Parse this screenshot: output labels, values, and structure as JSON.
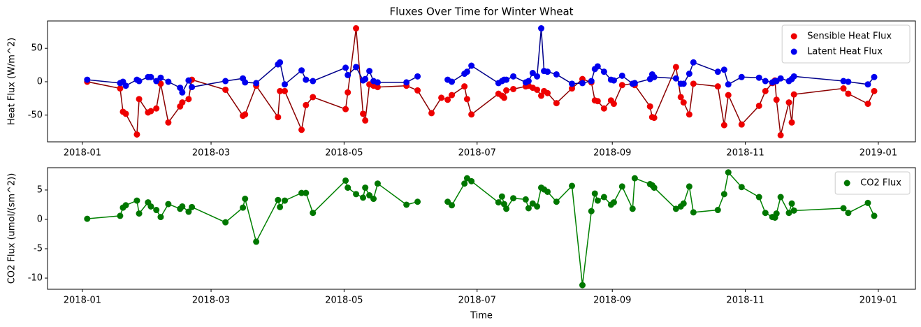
{
  "chart_data": [
    {
      "type": "line",
      "title": "Fluxes Over Time for Winter Wheat",
      "y_label": "Heat Flux (W/m^2)",
      "x": [
        2.2,
        17.3,
        18.6,
        19.9,
        25.0,
        26.0,
        30.1,
        31.4,
        33.9,
        35.9,
        39.4,
        44.8,
        45.8,
        48.7,
        50.2,
        65.6,
        73.6,
        74.6,
        79.7,
        89.7,
        90.6,
        92.8,
        100.5,
        102.5,
        105.7,
        120.7,
        121.7,
        125.5,
        128.7,
        129.7,
        131.6,
        133.5,
        135.4,
        148.6,
        153.7,
        160.1,
        164.6,
        167.5,
        169.4,
        175.2,
        176.4,
        178.4,
        190.8,
        192.4,
        193.4,
        194.4,
        197.6,
        203.3,
        204.6,
        206.5,
        208.5,
        210.4,
        211.7,
        213.3,
        217.4,
        224.5,
        229.3,
        233.4,
        235.0,
        236.3,
        239.2,
        242.4,
        243.7,
        247.5,
        252.3,
        253.3,
        260.3,
        261.3,
        262.2,
        272.2,
        274.4,
        275.7,
        278.3,
        280.2,
        291.4,
        294.3,
        296.2,
        302.3,
        310.3,
        313.2,
        316.4,
        317.6,
        318.3,
        320.2,
        324.0,
        325.3,
        326.3,
        349.0,
        351.2,
        360.2,
        363.1
      ],
      "series": [
        {
          "name": "Sensible Heat Flux",
          "color": "#ee0000",
          "line_color": "#8b0000",
          "values": [
            0,
            -10,
            -45,
            -48,
            -79,
            -26,
            -46,
            -44,
            -40,
            -3,
            -61,
            -37,
            -31,
            -26,
            3,
            -12,
            -51,
            -49,
            -6,
            -53,
            -14,
            -14,
            -72,
            -35,
            -23,
            -41,
            -16,
            80,
            -48,
            -58,
            -4,
            -6,
            -8,
            -6,
            -13,
            -47,
            -24,
            -27,
            -20,
            -7,
            -26,
            -49,
            -18,
            -21,
            -24,
            -13,
            -11,
            -7,
            -6,
            -9,
            -12,
            -21,
            -14,
            -17,
            -32,
            -10,
            4,
            -1,
            -28,
            -29,
            -40,
            -28,
            -33,
            -5,
            -3,
            -5,
            -37,
            -53,
            -54,
            22,
            -23,
            -31,
            -49,
            -3,
            -7,
            -65,
            -20,
            -64,
            -36,
            -14,
            -2,
            2,
            -27,
            -80,
            -31,
            -61,
            -19,
            -10,
            -18,
            -33,
            -14
          ]
        },
        {
          "name": "Latent Heat Flux",
          "color": "#0000ee",
          "line_color": "#00008b",
          "values": [
            3,
            -2,
            0,
            -6,
            3,
            1,
            7,
            7,
            1,
            6,
            0,
            -9,
            -16,
            2,
            -8,
            1,
            5,
            -1,
            -2,
            26,
            29,
            -4,
            17,
            3,
            1,
            21,
            10,
            22,
            2,
            4,
            16,
            1,
            -1,
            -1,
            8,
            null,
            null,
            3,
            0,
            12,
            15,
            24,
            -2,
            1,
            3,
            3,
            8,
            -1,
            1,
            13,
            8,
            80,
            16,
            15,
            11,
            -3,
            -2,
            1,
            19,
            23,
            15,
            3,
            2,
            9,
            -3,
            -2,
            4,
            11,
            7,
            5,
            -3,
            -3,
            12,
            29,
            15,
            18,
            -4,
            7,
            6,
            1,
            -1,
            1,
            1,
            5,
            1,
            4,
            8,
            1,
            0,
            -4,
            7
          ]
        }
      ],
      "xlim": [
        -16,
        382
      ],
      "xticks": [
        {
          "value": 0,
          "label": "2018-01"
        },
        {
          "value": 59,
          "label": "2018-03"
        },
        {
          "value": 120,
          "label": "2018-05"
        },
        {
          "value": 181,
          "label": "2018-07"
        },
        {
          "value": 243,
          "label": "2018-09"
        },
        {
          "value": 304,
          "label": "2018-11"
        },
        {
          "value": 365,
          "label": "2019-01"
        }
      ],
      "ylim": [
        -90,
        91
      ],
      "yticks": [
        -50,
        0,
        50
      ],
      "legend": "upper right"
    },
    {
      "type": "line",
      "x_label": "Time",
      "y_label": "CO2 Flux (umol/(sm^2))",
      "x": [
        2.2,
        17.3,
        18.6,
        19.9,
        25.0,
        26.0,
        30.1,
        31.4,
        33.9,
        35.9,
        39.4,
        44.8,
        45.8,
        48.7,
        50.2,
        65.6,
        73.6,
        74.6,
        79.7,
        89.7,
        90.6,
        92.8,
        100.5,
        102.5,
        105.7,
        120.7,
        121.7,
        125.5,
        128.7,
        129.7,
        131.6,
        133.5,
        135.4,
        148.6,
        153.7,
        160.1,
        164.6,
        167.5,
        169.4,
        175.2,
        176.4,
        178.4,
        190.8,
        192.4,
        193.4,
        194.4,
        197.6,
        203.3,
        204.6,
        206.5,
        208.5,
        210.4,
        211.7,
        213.3,
        217.4,
        224.5,
        229.3,
        233.4,
        235.0,
        236.3,
        239.2,
        242.4,
        243.7,
        247.5,
        252.3,
        253.3,
        260.3,
        261.3,
        262.2,
        272.2,
        274.4,
        275.7,
        278.3,
        280.2,
        291.4,
        294.3,
        296.2,
        302.3,
        310.3,
        313.2,
        316.4,
        317.6,
        318.3,
        320.2,
        324.0,
        325.3,
        326.3,
        349.0,
        351.2,
        360.2,
        363.1
      ],
      "series": [
        {
          "name": "CO2 Flux",
          "color": "#007700",
          "line_color": "#008000",
          "values": [
            0.1,
            0.6,
            2.0,
            2.4,
            3.2,
            1.0,
            2.9,
            2.2,
            1.6,
            0.4,
            2.6,
            1.8,
            2.2,
            1.3,
            2.1,
            -0.5,
            2.0,
            3.5,
            -3.8,
            3.3,
            2.1,
            3.2,
            4.5,
            4.5,
            1.1,
            6.6,
            5.4,
            4.3,
            3.7,
            5.4,
            4.1,
            3.5,
            6.1,
            2.5,
            3.0,
            null,
            null,
            3.0,
            2.4,
            6.1,
            7.0,
            6.5,
            2.9,
            3.9,
            2.6,
            1.8,
            3.6,
            3.4,
            1.9,
            2.7,
            2.2,
            5.4,
            5.1,
            4.7,
            3.0,
            5.7,
            -11.2,
            1.4,
            4.4,
            3.2,
            3.8,
            2.5,
            2.9,
            5.6,
            1.8,
            7.0,
            6.0,
            5.8,
            5.4,
            1.8,
            2.2,
            2.7,
            5.6,
            1.2,
            1.6,
            4.3,
            8.0,
            5.5,
            3.8,
            1.1,
            0.4,
            0.3,
            1.0,
            3.8,
            1.1,
            2.7,
            1.5,
            1.9,
            1.1,
            2.8,
            0.6
          ]
        }
      ],
      "xlim": [
        -16,
        382
      ],
      "xticks": [
        {
          "value": 0,
          "label": "2018-01"
        },
        {
          "value": 59,
          "label": "2018-03"
        },
        {
          "value": 120,
          "label": "2018-05"
        },
        {
          "value": 181,
          "label": "2018-07"
        },
        {
          "value": 243,
          "label": "2018-09"
        },
        {
          "value": 304,
          "label": "2018-11"
        },
        {
          "value": 365,
          "label": "2019-01"
        }
      ],
      "ylim": [
        -11.9,
        8.8
      ],
      "yticks": [
        -10,
        -5,
        0,
        5
      ],
      "legend": "upper right"
    }
  ]
}
